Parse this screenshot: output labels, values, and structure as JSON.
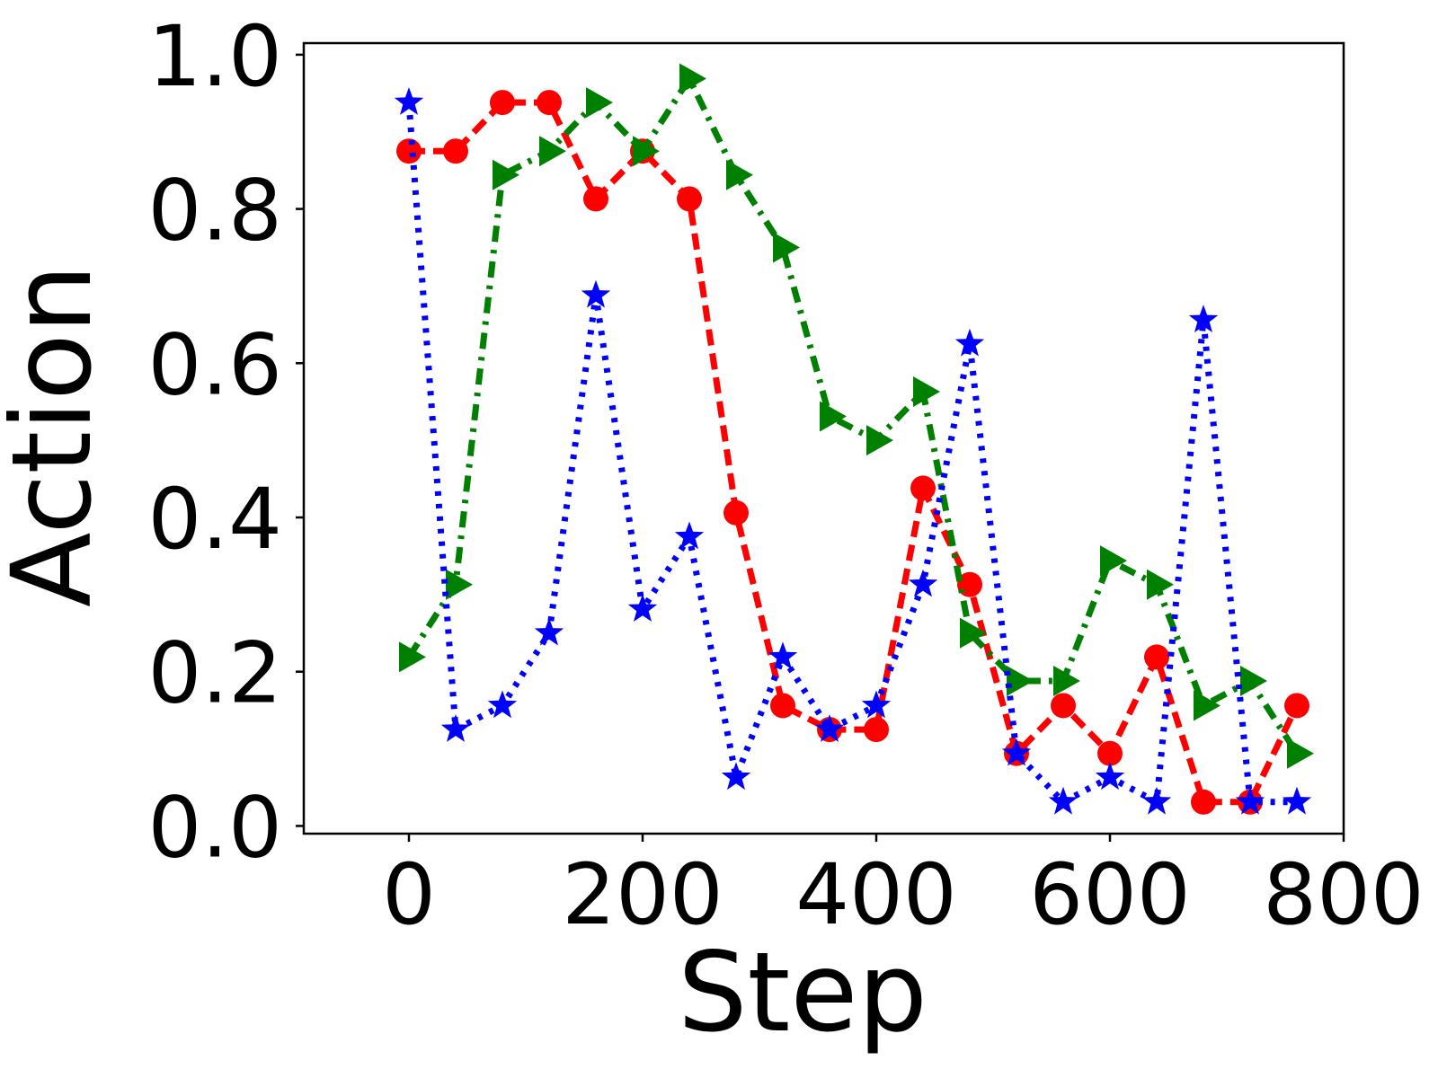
{
  "chart_data": {
    "type": "line",
    "title": "",
    "xlabel": "Step",
    "ylabel": "Action",
    "xlim": [
      -90,
      800
    ],
    "ylim": [
      -0.01,
      1.015
    ],
    "x_ticks": [
      0,
      200,
      400,
      600,
      800
    ],
    "y_ticks": [
      0.0,
      0.2,
      0.4,
      0.6,
      0.8,
      1.0
    ],
    "x_tick_labels": [
      "0",
      "200",
      "400",
      "600",
      "800"
    ],
    "y_tick_labels": [
      "0.0",
      "0.2",
      "0.4",
      "0.6",
      "0.8",
      "1.0"
    ],
    "grid": false,
    "legend": "none",
    "series": [
      {
        "color": "#ff0000",
        "line_style": "dashed",
        "marker": "circle",
        "x": [
          0,
          40,
          80,
          120,
          160,
          200,
          240,
          280,
          320,
          360,
          400,
          440,
          480,
          520,
          560,
          600,
          640,
          680,
          720,
          760
        ],
        "values": [
          0.875,
          0.875,
          0.938,
          0.938,
          0.813,
          0.875,
          0.813,
          0.406,
          0.156,
          0.125,
          0.125,
          0.438,
          0.313,
          0.094,
          0.156,
          0.094,
          0.219,
          0.031,
          0.031,
          0.156
        ]
      },
      {
        "color": "#008000",
        "line_style": "dashdot",
        "marker": "triangle-right",
        "x": [
          0,
          40,
          80,
          120,
          160,
          200,
          240,
          280,
          320,
          360,
          400,
          440,
          480,
          520,
          560,
          600,
          640,
          680,
          720,
          760
        ],
        "values": [
          0.219,
          0.313,
          0.844,
          0.875,
          0.938,
          0.875,
          0.969,
          0.844,
          0.75,
          0.531,
          0.5,
          0.563,
          0.25,
          0.188,
          0.188,
          0.344,
          0.313,
          0.156,
          0.188,
          0.094
        ]
      },
      {
        "color": "#0000ff",
        "line_style": "dotted",
        "marker": "star",
        "x": [
          0,
          40,
          80,
          120,
          160,
          200,
          240,
          280,
          320,
          360,
          400,
          440,
          480,
          520,
          560,
          600,
          640,
          680,
          720,
          760
        ],
        "values": [
          0.938,
          0.125,
          0.156,
          0.25,
          0.688,
          0.281,
          0.375,
          0.063,
          0.219,
          0.125,
          0.156,
          0.313,
          0.625,
          0.094,
          0.031,
          0.063,
          0.031,
          0.656,
          0.031,
          0.031
        ]
      }
    ]
  }
}
